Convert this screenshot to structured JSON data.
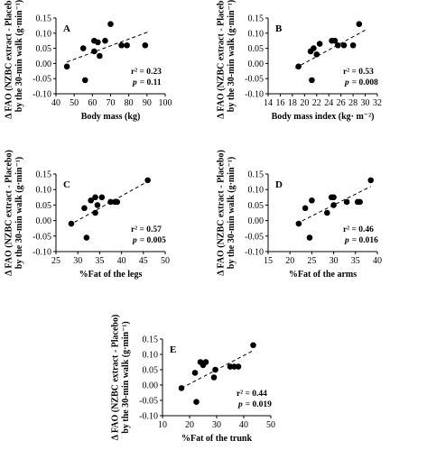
{
  "chart_data": [
    {
      "type": "scatter",
      "panel": "A",
      "ylabel": "Δ FAO (NZBC extract - Placebo)\nby the 30-min walk (g·min⁻¹)",
      "ylabel_line1": "Δ FAO (NZBC extract - Placebo)",
      "ylabel_line2": "by the 30-min walk (g·min⁻¹)",
      "xlabel": "Body mass (kg)",
      "xlim": [
        40,
        100
      ],
      "ylim": [
        -0.1,
        0.15
      ],
      "xticks": [
        "40",
        "50",
        "60",
        "70",
        "80",
        "90",
        "100"
      ],
      "yticks": [
        "-0.10",
        "-0.05",
        "0.00",
        "0.05",
        "0.10",
        "0.15"
      ],
      "x": [
        46,
        55,
        56,
        61,
        61,
        63,
        64,
        67,
        70,
        76,
        79,
        89
      ],
      "y": [
        -0.01,
        0.05,
        -0.055,
        0.04,
        0.075,
        0.07,
        0.025,
        0.075,
        0.13,
        0.06,
        0.06,
        0.06
      ],
      "trendline": {
        "x": [
          46,
          91
        ],
        "y": [
          0.005,
          0.105
        ]
      },
      "r2_text": "r² = 0.23",
      "p_value": "= 0.11",
      "grid": false
    },
    {
      "type": "scatter",
      "panel": "B",
      "ylabel": "Δ FAO (NZBC extract - Placebo)\nby the 30-min walk (g·min⁻¹)",
      "ylabel_line1": "Δ FAO (NZBC extract - Placebo)",
      "ylabel_line2": "by the 30-min walk (g·min⁻¹)",
      "xlabel": "Body mass index (kg· m⁻²)",
      "xlim": [
        14,
        32
      ],
      "ylim": [
        -0.1,
        0.15
      ],
      "xticks": [
        "14",
        "16",
        "18",
        "20",
        "22",
        "24",
        "26",
        "28",
        "30",
        "32"
      ],
      "yticks": [
        "-0.10",
        "-0.05",
        "0.00",
        "0.05",
        "0.10",
        "0.15"
      ],
      "x": [
        19,
        21,
        21.2,
        21.5,
        22,
        22.5,
        24.5,
        25,
        25.5,
        26.5,
        28,
        29
      ],
      "y": [
        -0.01,
        0.04,
        -0.055,
        0.05,
        0.03,
        0.065,
        0.075,
        0.075,
        0.06,
        0.06,
        0.06,
        0.13
      ],
      "trendline": {
        "x": [
          18.5,
          30
        ],
        "y": [
          -0.015,
          0.11
        ]
      },
      "r2_text": "r² = 0.53",
      "p_value": "= 0.008",
      "grid": false
    },
    {
      "type": "scatter",
      "panel": "C",
      "ylabel": "Δ FAO (NZBC extract - Placebo)\nby the 30-min walk (g·min⁻¹)",
      "ylabel_line1": "Δ FAO (NZBC extract - Placebo)",
      "ylabel_line2": "by the 30-min walk (g·min⁻¹)",
      "xlabel": "%Fat of the legs",
      "xlim": [
        25,
        50
      ],
      "ylim": [
        -0.1,
        0.15
      ],
      "xticks": [
        "25",
        "30",
        "35",
        "40",
        "45",
        "50"
      ],
      "yticks": [
        "-0.10",
        "-0.05",
        "0.00",
        "0.05",
        "0.10",
        "0.15"
      ],
      "x": [
        28.5,
        31.5,
        32,
        33,
        34,
        34,
        34.5,
        35.5,
        37.5,
        38.5,
        39,
        46
      ],
      "y": [
        -0.01,
        0.04,
        -0.055,
        0.065,
        0.075,
        0.025,
        0.05,
        0.075,
        0.06,
        0.06,
        0.06,
        0.13
      ],
      "trendline": {
        "x": [
          28,
          46.5
        ],
        "y": [
          -0.015,
          0.13
        ]
      },
      "r2_text": "r² = 0.57",
      "p_value": "= 0.005",
      "grid": false
    },
    {
      "type": "scatter",
      "panel": "D",
      "ylabel": "Δ FAO (NZBC extract - Placebo)\nby the 30-min walk (g·min⁻¹)",
      "ylabel_line1": "Δ FAO (NZBC extract - Placebo)",
      "ylabel_line2": "by the 30-min walk (g·min⁻¹)",
      "xlabel": "%Fat of the arms",
      "xlim": [
        15,
        40
      ],
      "ylim": [
        -0.1,
        0.15
      ],
      "xticks": [
        "15",
        "20",
        "25",
        "30",
        "35",
        "40"
      ],
      "yticks": [
        "-0.10",
        "-0.05",
        "0.00",
        "0.05",
        "0.10",
        "0.15"
      ],
      "x": [
        22,
        23.5,
        24.5,
        25,
        28.5,
        29.5,
        30,
        30,
        33,
        35.5,
        36,
        38.5
      ],
      "y": [
        -0.01,
        0.04,
        -0.055,
        0.065,
        0.025,
        0.075,
        0.075,
        0.05,
        0.06,
        0.06,
        0.06,
        0.13
      ],
      "trendline": {
        "x": [
          21.5,
          38.5
        ],
        "y": [
          -0.01,
          0.11
        ]
      },
      "r2_text": "r² = 0.46",
      "p_value": "= 0.016",
      "grid": false
    },
    {
      "type": "scatter",
      "panel": "E",
      "ylabel": "Δ FAO (NZBC extract - Placebo)\nby the 30-min walk (g·min⁻¹)",
      "ylabel_line1": "Δ FAO (NZBC extract - Placebo)",
      "ylabel_line2": "by the 30-min walk (g·min⁻¹)",
      "xlabel": "%Fat of the trunk",
      "xlim": [
        10,
        50
      ],
      "ylim": [
        -0.1,
        0.15
      ],
      "xticks": [
        "10",
        "20",
        "30",
        "40",
        "50"
      ],
      "yticks": [
        "-0.10",
        "-0.05",
        "0.00",
        "0.05",
        "0.10",
        "0.15"
      ],
      "x": [
        17,
        22,
        22.5,
        24,
        25,
        26,
        29,
        29.5,
        35,
        36.5,
        38,
        43.5
      ],
      "y": [
        -0.01,
        0.04,
        -0.055,
        0.075,
        0.065,
        0.075,
        0.025,
        0.05,
        0.06,
        0.06,
        0.06,
        0.13
      ],
      "trendline": {
        "x": [
          17,
          43
        ],
        "y": [
          -0.01,
          0.11
        ]
      },
      "r2_text": "r² = 0.44",
      "p_value": "= 0.019",
      "grid": false
    }
  ]
}
